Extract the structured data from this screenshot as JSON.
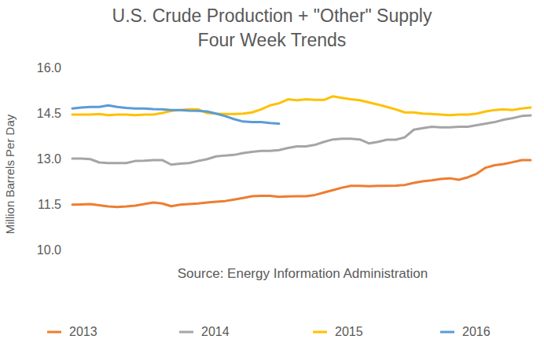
{
  "chart_data": {
    "type": "line",
    "title": "U.S. Crude Production + \"Other\" Supply",
    "subtitle": "Four Week Trends",
    "y_label": "Million Barrels Per Day",
    "annotations": [
      "Source: Energy Information Administration"
    ],
    "categories": [
      null,
      null,
      null,
      null,
      null,
      null,
      null,
      null,
      null,
      null,
      null,
      null,
      null,
      null,
      null,
      null,
      null,
      null,
      null,
      null,
      null,
      null,
      null,
      null,
      null,
      null,
      null,
      null,
      null,
      null,
      null,
      null,
      null,
      null,
      null,
      null,
      null,
      null,
      null,
      null,
      null,
      null,
      null,
      null,
      null,
      null,
      null,
      null,
      null,
      null,
      null,
      null
    ],
    "series": [
      {
        "name": "2013",
        "color": "#ED7D31",
        "values": [
          11.48,
          11.49,
          11.5,
          11.46,
          11.42,
          11.4,
          11.42,
          11.45,
          11.5,
          11.55,
          11.52,
          11.43,
          11.48,
          11.5,
          11.52,
          11.55,
          11.58,
          11.6,
          11.65,
          11.7,
          11.76,
          11.77,
          11.77,
          11.74,
          11.75,
          11.76,
          11.76,
          11.8,
          11.88,
          11.96,
          12.04,
          12.1,
          12.1,
          12.09,
          12.1,
          12.1,
          12.11,
          12.13,
          12.2,
          12.25,
          12.28,
          12.33,
          12.35,
          12.3,
          12.38,
          12.5,
          12.7,
          12.78,
          12.82,
          12.88,
          12.95,
          12.95
        ]
      },
      {
        "name": "2014",
        "color": "#A5A5A5",
        "values": [
          13.0,
          13.0,
          12.98,
          12.87,
          12.85,
          12.85,
          12.85,
          12.92,
          12.93,
          12.95,
          12.95,
          12.8,
          12.83,
          12.85,
          12.92,
          12.98,
          13.07,
          13.1,
          13.12,
          13.18,
          13.22,
          13.25,
          13.25,
          13.28,
          13.35,
          13.4,
          13.4,
          13.45,
          13.55,
          13.63,
          13.65,
          13.65,
          13.63,
          13.5,
          13.55,
          13.62,
          13.62,
          13.7,
          13.95,
          14.0,
          14.05,
          14.03,
          14.03,
          14.05,
          14.05,
          14.1,
          14.15,
          14.2,
          14.28,
          14.33,
          14.4,
          14.42
        ]
      },
      {
        "name": "2015",
        "color": "#FFC000",
        "values": [
          14.45,
          14.45,
          14.45,
          14.47,
          14.43,
          14.45,
          14.45,
          14.43,
          14.45,
          14.45,
          14.5,
          14.57,
          14.6,
          14.62,
          14.62,
          14.5,
          14.48,
          14.47,
          14.47,
          14.48,
          14.52,
          14.62,
          14.75,
          14.82,
          14.95,
          14.92,
          14.95,
          14.93,
          14.93,
          15.05,
          15.0,
          14.95,
          14.92,
          14.85,
          14.78,
          14.7,
          14.62,
          14.52,
          14.52,
          14.48,
          14.47,
          14.45,
          14.43,
          14.45,
          14.45,
          14.48,
          14.55,
          14.6,
          14.62,
          14.6,
          14.65,
          14.68
        ]
      },
      {
        "name": "2016",
        "color": "#5B9BD5",
        "values": [
          14.65,
          14.68,
          14.7,
          14.7,
          14.75,
          14.7,
          14.67,
          14.65,
          14.65,
          14.63,
          14.62,
          14.6,
          14.6,
          14.58,
          14.57,
          14.55,
          14.48,
          14.4,
          14.3,
          14.22,
          14.2,
          14.2,
          14.17,
          14.15,
          null,
          null,
          null,
          null,
          null,
          null,
          null,
          null,
          null,
          null,
          null,
          null,
          null,
          null,
          null,
          null,
          null,
          null,
          null,
          null,
          null,
          null,
          null,
          null,
          null,
          null,
          null,
          null
        ]
      }
    ],
    "ylim": [
      10,
      16
    ],
    "yticks": [
      {
        "value": 10,
        "label": "10.0"
      },
      {
        "value": 11.5,
        "label": "11.5"
      },
      {
        "value": 13,
        "label": "13.0"
      },
      {
        "value": 14.5,
        "label": "14.5"
      },
      {
        "value": 16,
        "label": "16.0"
      }
    ],
    "grid": false,
    "legend": "bottom",
    "tick_labels": "y"
  }
}
